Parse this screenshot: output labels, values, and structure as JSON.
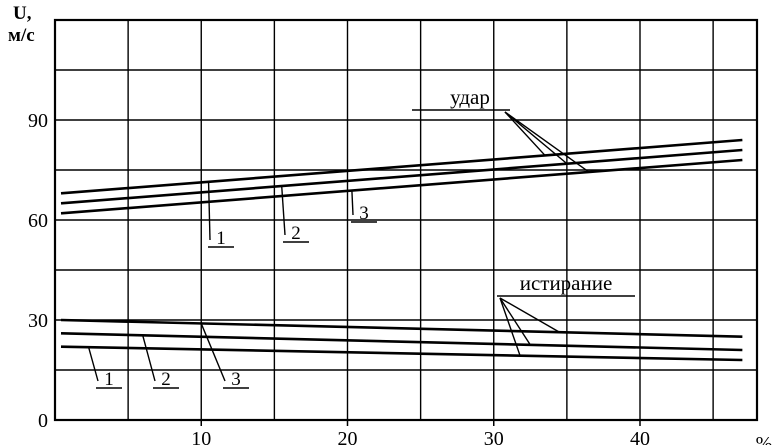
{
  "chart_data": {
    "type": "line",
    "ylabel": "U,\nм/с",
    "xlabel": "%",
    "y_tick_labels": [
      "0",
      "30",
      "60",
      "90"
    ],
    "x_tick_labels": [
      "10",
      "20",
      "30",
      "40"
    ],
    "xlim": [
      0,
      48
    ],
    "ylim": [
      0,
      120
    ],
    "grid": true,
    "groups": [
      {
        "label": "удар",
        "series": [
          {
            "name": "1",
            "x": [
              0,
              47
            ],
            "y": [
              68,
              84
            ]
          },
          {
            "name": "2",
            "x": [
              0,
              47
            ],
            "y": [
              65,
              81
            ]
          },
          {
            "name": "3",
            "x": [
              0,
              47
            ],
            "y": [
              62,
              78
            ]
          }
        ]
      },
      {
        "label": "истирание",
        "series": [
          {
            "name": "1",
            "x": [
              0,
              47
            ],
            "y": [
              22,
              18
            ]
          },
          {
            "name": "2",
            "x": [
              0,
              47
            ],
            "y": [
              26,
              21
            ]
          },
          {
            "name": "3",
            "x": [
              0,
              47
            ],
            "y": [
              30,
              25
            ]
          }
        ]
      }
    ]
  }
}
